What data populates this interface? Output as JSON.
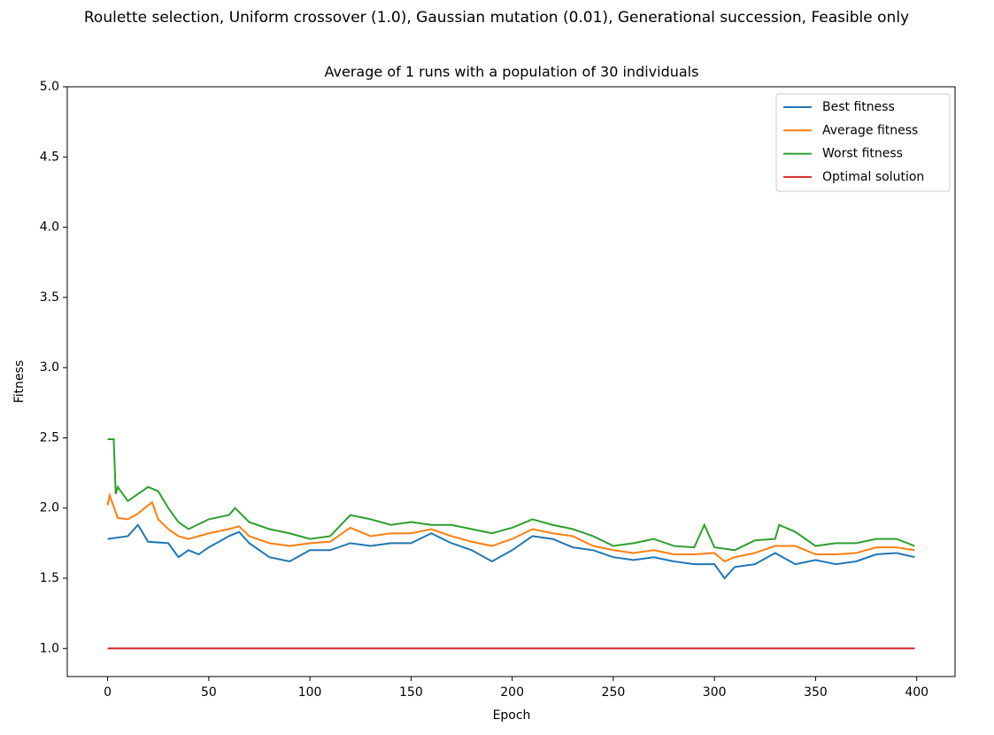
{
  "chart_data": {
    "type": "line",
    "suptitle": "Roulette selection, Uniform crossover (1.0), Gaussian mutation (0.01), Generational succession, Feasible only",
    "title": "Average of 1 runs with a population of 30 individuals",
    "x_label": "Epoch",
    "y_label": "Fitness",
    "xlim": [
      -19.95,
      418.95
    ],
    "xticks": [
      0,
      50,
      100,
      150,
      200,
      250,
      300,
      350,
      400
    ],
    "ylim": [
      0.8,
      5.0
    ],
    "yticks": [
      {
        "value": 1,
        "label": "1.0"
      },
      {
        "value": 1.5,
        "label": "1.5"
      },
      {
        "value": 2,
        "label": "2.0"
      },
      {
        "value": 2.5,
        "label": "2.5"
      },
      {
        "value": 3,
        "label": "3.0"
      },
      {
        "value": 3.5,
        "label": "3.5"
      },
      {
        "value": 4,
        "label": "4.0"
      },
      {
        "value": 4.5,
        "label": "4.5"
      },
      {
        "value": 5,
        "label": "5.0"
      }
    ],
    "legend": "upper right",
    "series": [
      {
        "name": "Best fitness",
        "color": "#1f77b4",
        "x": [
          0,
          10,
          15,
          20,
          30,
          35,
          40,
          45,
          50,
          60,
          65,
          70,
          80,
          90,
          100,
          110,
          120,
          130,
          140,
          150,
          160,
          170,
          180,
          190,
          200,
          210,
          220,
          230,
          240,
          250,
          260,
          270,
          280,
          290,
          300,
          305,
          310,
          320,
          330,
          340,
          350,
          360,
          370,
          380,
          390,
          399
        ],
        "values": [
          1.78,
          1.8,
          1.88,
          1.76,
          1.75,
          1.65,
          1.7,
          1.67,
          1.72,
          1.8,
          1.83,
          1.75,
          1.65,
          1.62,
          1.7,
          1.7,
          1.75,
          1.73,
          1.75,
          1.75,
          1.82,
          1.75,
          1.7,
          1.62,
          1.7,
          1.8,
          1.78,
          1.72,
          1.7,
          1.65,
          1.63,
          1.65,
          1.62,
          1.6,
          1.6,
          1.5,
          1.58,
          1.6,
          1.68,
          1.6,
          1.63,
          1.6,
          1.62,
          1.67,
          1.68,
          1.65
        ]
      },
      {
        "name": "Average fitness",
        "color": "#ff7f0e",
        "x": [
          0,
          1,
          5,
          10,
          15,
          20,
          22,
          25,
          30,
          35,
          40,
          50,
          60,
          65,
          70,
          80,
          90,
          100,
          110,
          120,
          130,
          140,
          150,
          160,
          170,
          180,
          190,
          200,
          210,
          220,
          230,
          240,
          250,
          260,
          270,
          280,
          290,
          300,
          305,
          310,
          320,
          330,
          340,
          350,
          360,
          370,
          380,
          390,
          399
        ],
        "values": [
          2.02,
          2.09,
          1.93,
          1.92,
          1.96,
          2.02,
          2.04,
          1.92,
          1.85,
          1.8,
          1.78,
          1.82,
          1.85,
          1.87,
          1.8,
          1.75,
          1.73,
          1.75,
          1.76,
          1.86,
          1.8,
          1.82,
          1.82,
          1.85,
          1.8,
          1.76,
          1.73,
          1.78,
          1.85,
          1.82,
          1.8,
          1.73,
          1.7,
          1.68,
          1.7,
          1.67,
          1.67,
          1.68,
          1.62,
          1.65,
          1.68,
          1.73,
          1.73,
          1.67,
          1.67,
          1.68,
          1.72,
          1.72,
          1.7
        ]
      },
      {
        "name": "Worst fitness",
        "color": "#2ca02c",
        "x": [
          0,
          3,
          4,
          5,
          10,
          15,
          20,
          25,
          30,
          35,
          40,
          50,
          60,
          63,
          70,
          80,
          90,
          100,
          110,
          120,
          130,
          140,
          150,
          160,
          170,
          180,
          190,
          200,
          210,
          220,
          230,
          240,
          250,
          260,
          270,
          280,
          290,
          295,
          300,
          310,
          320,
          330,
          332,
          340,
          350,
          360,
          370,
          380,
          390,
          399
        ],
        "values": [
          2.49,
          2.49,
          2.1,
          2.15,
          2.05,
          2.1,
          2.15,
          2.12,
          2.0,
          1.9,
          1.85,
          1.92,
          1.95,
          2.0,
          1.9,
          1.85,
          1.82,
          1.78,
          1.8,
          1.95,
          1.92,
          1.88,
          1.9,
          1.88,
          1.88,
          1.85,
          1.82,
          1.86,
          1.92,
          1.88,
          1.85,
          1.8,
          1.73,
          1.75,
          1.78,
          1.73,
          1.72,
          1.88,
          1.72,
          1.7,
          1.77,
          1.78,
          1.88,
          1.83,
          1.73,
          1.75,
          1.75,
          1.78,
          1.78,
          1.73
        ]
      },
      {
        "name": "Optimal solution",
        "color": "#d62728",
        "x": [
          0,
          399
        ],
        "values": [
          1,
          1
        ]
      }
    ]
  }
}
